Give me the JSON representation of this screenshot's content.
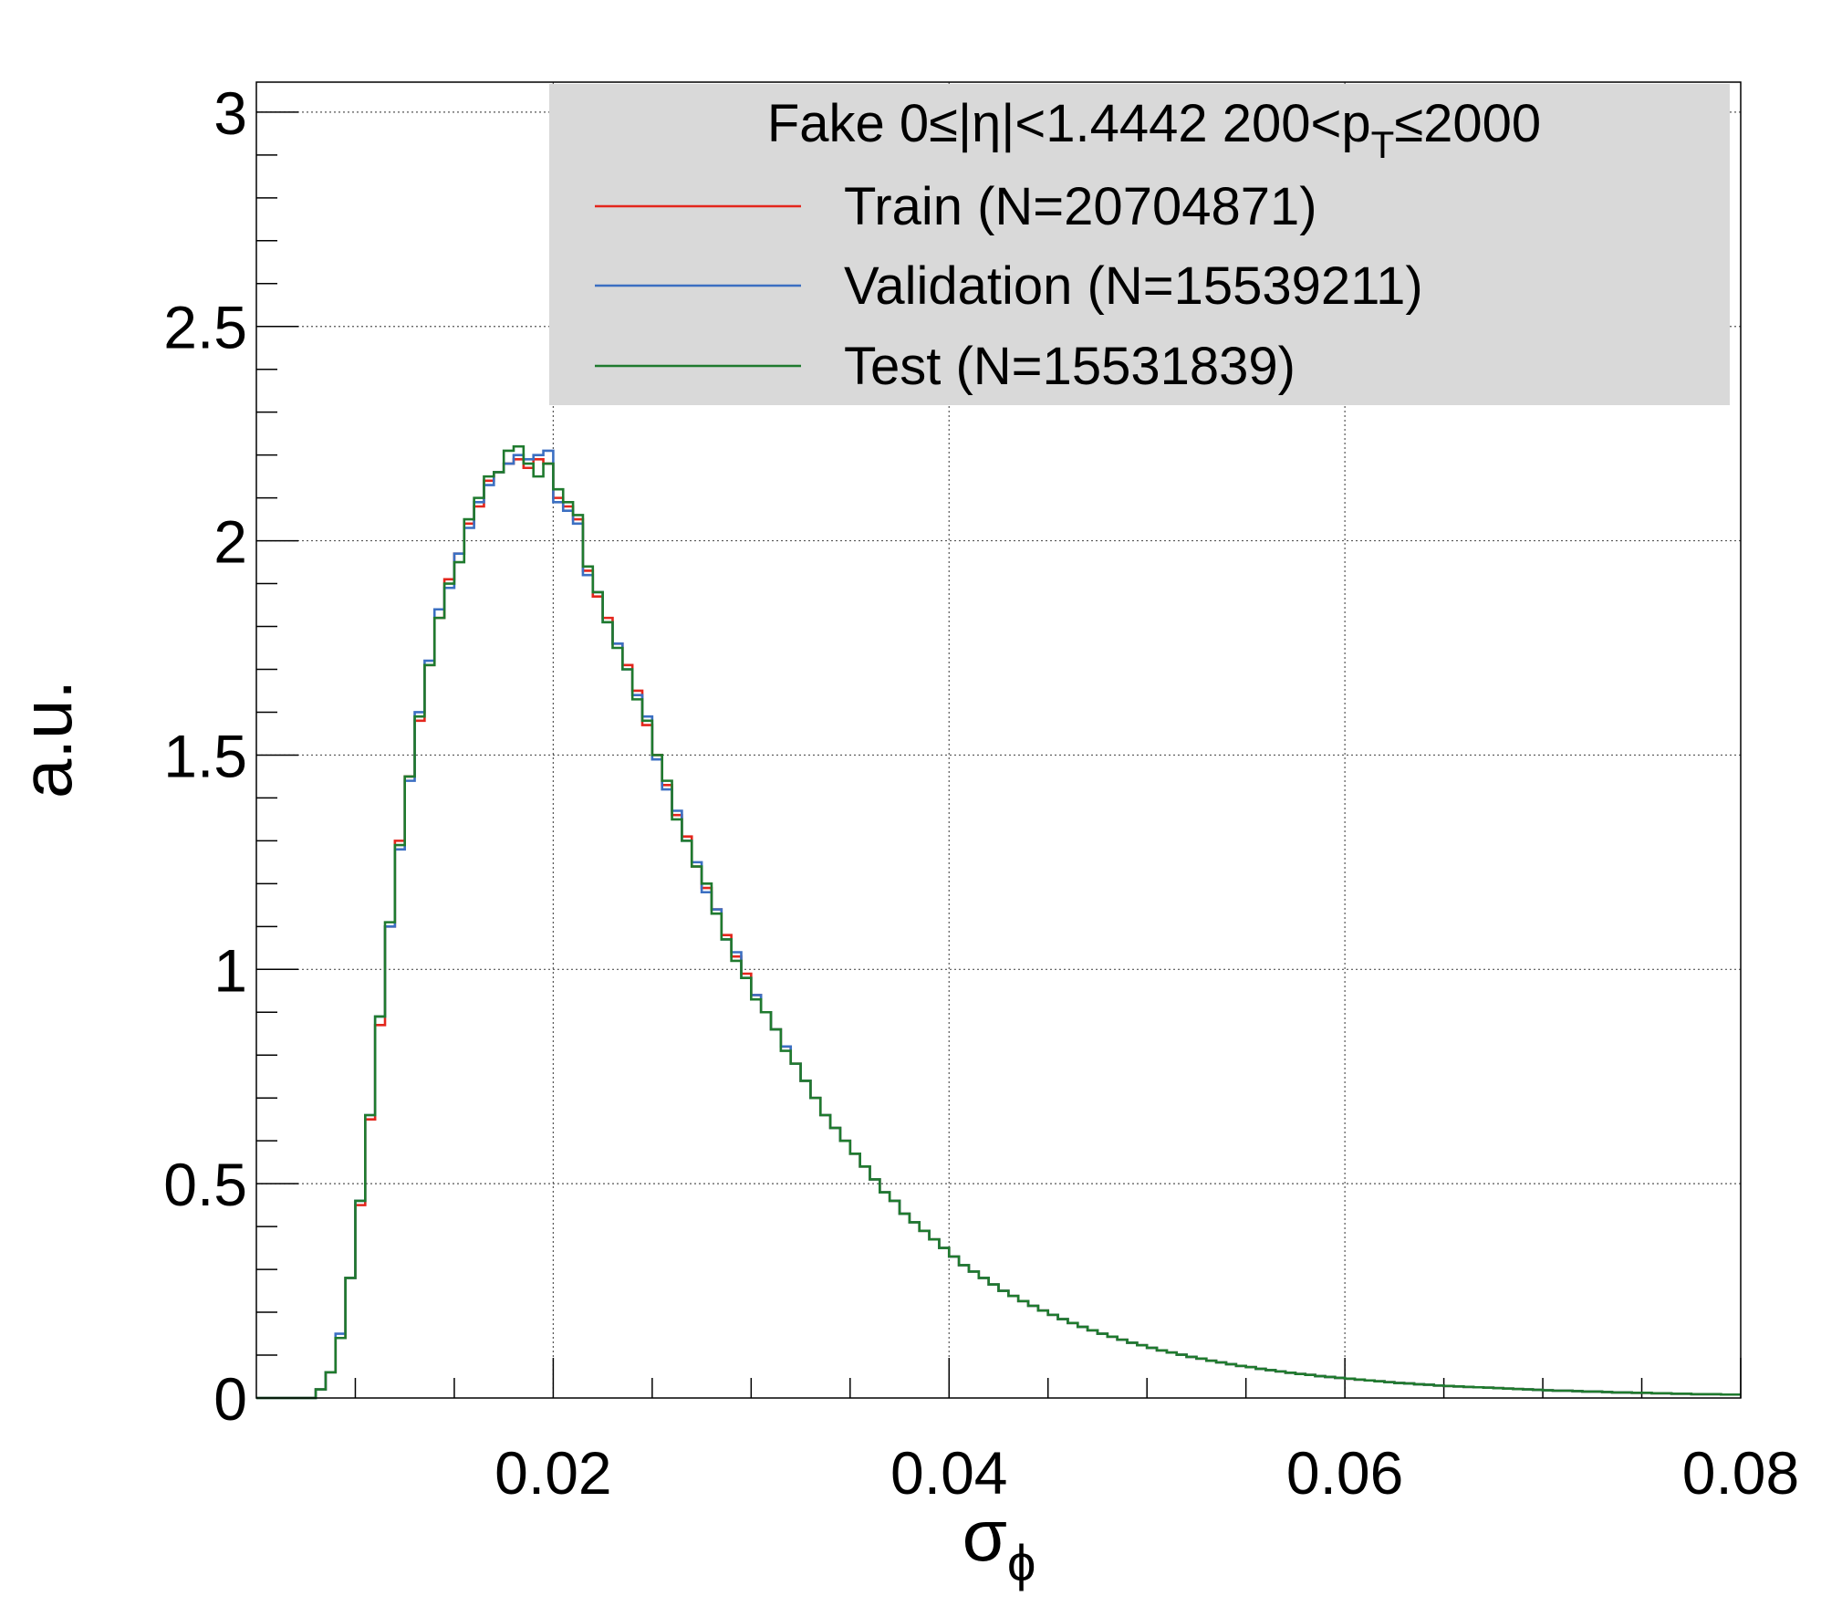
{
  "chart_data": {
    "type": "line",
    "title": "",
    "xlabel": "σ",
    "xlabel_sub": "ϕ",
    "ylabel": "a.u.",
    "xlim": [
      0.005,
      0.08
    ],
    "ylim": [
      0,
      3.07
    ],
    "x_ticks": [
      0.02,
      0.04,
      0.06,
      0.08
    ],
    "x_tick_labels": [
      "0.02",
      "0.04",
      "0.06",
      "0.08"
    ],
    "y_ticks": [
      0,
      0.5,
      1,
      1.5,
      2,
      2.5,
      3
    ],
    "y_tick_labels": [
      "0",
      "0.5",
      "1",
      "1.5",
      "2",
      "2.5",
      "3"
    ],
    "grid": true,
    "legend": {
      "placement": "top-right",
      "header": {
        "main": "Fake  0≤|η|<1.4442  200<p",
        "sub": "T",
        "tail": "≤2000"
      },
      "background": "#d9d9d9"
    },
    "bin_edges": {
      "start": 0.005,
      "width": 0.0005,
      "count": 150
    },
    "series": [
      {
        "name": "Train (N=20704871)",
        "color": "#e3261c",
        "values": [
          0,
          0,
          0,
          0,
          0,
          0,
          0.02,
          0.06,
          0.14,
          0.28,
          0.45,
          0.65,
          0.87,
          1.1,
          1.3,
          1.45,
          1.58,
          1.71,
          1.82,
          1.91,
          1.97,
          2.04,
          2.08,
          2.14,
          2.16,
          2.18,
          2.19,
          2.17,
          2.19,
          2.18,
          2.1,
          2.08,
          2.05,
          1.93,
          1.87,
          1.82,
          1.76,
          1.71,
          1.65,
          1.57,
          1.5,
          1.43,
          1.36,
          1.31,
          1.24,
          1.19,
          1.14,
          1.08,
          1.03,
          0.99,
          0.94,
          0.9,
          0.86,
          0.82,
          0.78,
          0.74,
          0.7,
          0.66,
          0.63,
          0.6,
          0.57,
          0.54,
          0.51,
          0.48,
          0.46,
          0.43,
          0.41,
          0.39,
          0.37,
          0.35,
          0.33,
          0.31,
          0.295,
          0.28,
          0.265,
          0.25,
          0.238,
          0.226,
          0.215,
          0.204,
          0.194,
          0.184,
          0.175,
          0.166,
          0.158,
          0.15,
          0.143,
          0.136,
          0.129,
          0.123,
          0.117,
          0.111,
          0.106,
          0.101,
          0.096,
          0.092,
          0.087,
          0.083,
          0.079,
          0.075,
          0.072,
          0.068,
          0.065,
          0.062,
          0.059,
          0.056,
          0.054,
          0.051,
          0.049,
          0.047,
          0.045,
          0.043,
          0.041,
          0.039,
          0.037,
          0.035,
          0.034,
          0.032,
          0.031,
          0.029,
          0.028,
          0.027,
          0.026,
          0.025,
          0.024,
          0.023,
          0.022,
          0.021,
          0.02,
          0.019,
          0.018,
          0.017,
          0.017,
          0.016,
          0.015,
          0.015,
          0.014,
          0.013,
          0.013,
          0.012,
          0.012,
          0.011,
          0.011,
          0.01,
          0.01,
          0.009,
          0.009,
          0.009,
          0.008,
          0.008
        ]
      },
      {
        "name": "Validation (N=15539211)",
        "color": "#3b6fc2",
        "values": [
          0,
          0,
          0,
          0,
          0,
          0,
          0.02,
          0.06,
          0.15,
          0.28,
          0.46,
          0.66,
          0.89,
          1.1,
          1.28,
          1.44,
          1.6,
          1.72,
          1.84,
          1.89,
          1.97,
          2.03,
          2.09,
          2.13,
          2.16,
          2.18,
          2.2,
          2.19,
          2.2,
          2.21,
          2.09,
          2.07,
          2.04,
          1.92,
          1.88,
          1.81,
          1.76,
          1.7,
          1.64,
          1.59,
          1.49,
          1.42,
          1.37,
          1.3,
          1.25,
          1.18,
          1.14,
          1.07,
          1.04,
          0.98,
          0.94,
          0.9,
          0.86,
          0.82,
          0.78,
          0.74,
          0.7,
          0.66,
          0.63,
          0.6,
          0.57,
          0.54,
          0.51,
          0.48,
          0.46,
          0.43,
          0.41,
          0.39,
          0.37,
          0.35,
          0.33,
          0.31,
          0.295,
          0.28,
          0.265,
          0.25,
          0.238,
          0.226,
          0.215,
          0.204,
          0.194,
          0.184,
          0.175,
          0.166,
          0.158,
          0.15,
          0.143,
          0.136,
          0.129,
          0.123,
          0.117,
          0.111,
          0.106,
          0.101,
          0.096,
          0.092,
          0.087,
          0.083,
          0.079,
          0.075,
          0.072,
          0.068,
          0.065,
          0.062,
          0.059,
          0.056,
          0.054,
          0.051,
          0.049,
          0.047,
          0.045,
          0.043,
          0.041,
          0.039,
          0.037,
          0.035,
          0.034,
          0.032,
          0.031,
          0.029,
          0.028,
          0.027,
          0.026,
          0.025,
          0.024,
          0.023,
          0.022,
          0.021,
          0.02,
          0.019,
          0.018,
          0.017,
          0.017,
          0.016,
          0.015,
          0.015,
          0.014,
          0.013,
          0.013,
          0.012,
          0.012,
          0.011,
          0.011,
          0.01,
          0.01,
          0.009,
          0.009,
          0.009,
          0.008,
          0.008
        ]
      },
      {
        "name": "Test (N=15531839)",
        "color": "#1f7a2e",
        "values": [
          0,
          0,
          0,
          0,
          0,
          0,
          0.02,
          0.06,
          0.14,
          0.28,
          0.46,
          0.66,
          0.89,
          1.11,
          1.29,
          1.45,
          1.59,
          1.71,
          1.82,
          1.9,
          1.95,
          2.05,
          2.1,
          2.15,
          2.16,
          2.21,
          2.22,
          2.18,
          2.15,
          2.18,
          2.12,
          2.09,
          2.06,
          1.94,
          1.88,
          1.81,
          1.75,
          1.7,
          1.63,
          1.58,
          1.5,
          1.44,
          1.35,
          1.3,
          1.24,
          1.2,
          1.13,
          1.07,
          1.02,
          0.98,
          0.93,
          0.9,
          0.86,
          0.81,
          0.78,
          0.74,
          0.7,
          0.66,
          0.63,
          0.6,
          0.57,
          0.54,
          0.51,
          0.48,
          0.46,
          0.43,
          0.41,
          0.39,
          0.37,
          0.35,
          0.33,
          0.31,
          0.295,
          0.28,
          0.265,
          0.25,
          0.238,
          0.226,
          0.215,
          0.204,
          0.194,
          0.184,
          0.175,
          0.166,
          0.158,
          0.15,
          0.143,
          0.136,
          0.129,
          0.123,
          0.117,
          0.111,
          0.106,
          0.101,
          0.096,
          0.092,
          0.087,
          0.083,
          0.079,
          0.075,
          0.072,
          0.068,
          0.065,
          0.062,
          0.059,
          0.056,
          0.054,
          0.051,
          0.049,
          0.047,
          0.045,
          0.043,
          0.041,
          0.039,
          0.037,
          0.035,
          0.034,
          0.032,
          0.031,
          0.029,
          0.028,
          0.027,
          0.026,
          0.025,
          0.024,
          0.023,
          0.022,
          0.021,
          0.02,
          0.019,
          0.018,
          0.017,
          0.017,
          0.016,
          0.015,
          0.015,
          0.014,
          0.013,
          0.013,
          0.012,
          0.012,
          0.011,
          0.011,
          0.01,
          0.01,
          0.009,
          0.009,
          0.009,
          0.008,
          0.008
        ]
      }
    ]
  }
}
